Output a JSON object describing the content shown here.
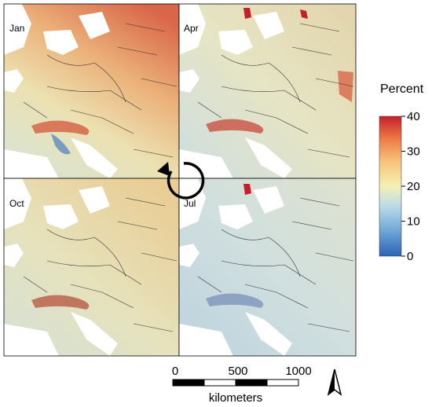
{
  "panels": [
    {
      "id": "jan",
      "label": "Jan"
    },
    {
      "id": "apr",
      "label": "Apr"
    },
    {
      "id": "oct",
      "label": "Oct"
    },
    {
      "id": "jul",
      "label": "Jul"
    }
  ],
  "legend": {
    "title": "Percent",
    "ticks": [
      "40",
      "30",
      "20",
      "10",
      "0"
    ],
    "tick_values": [
      40,
      30,
      20,
      10,
      0
    ],
    "range": [
      0,
      40
    ],
    "colors": [
      "#2c63b4",
      "#6ea6d6",
      "#bcdce8",
      "#f4f0b4",
      "#f6c27a",
      "#ec7a45",
      "#c51f2a"
    ]
  },
  "scalebar": {
    "ticks": [
      "0",
      "500",
      "1000"
    ],
    "tick_values": [
      0,
      500,
      1000
    ],
    "unit": "kilometers"
  },
  "north_arrow": {
    "icon": "north-arrow-icon"
  },
  "cycle_arrow": {
    "icon": "circular-arrow-icon"
  }
}
